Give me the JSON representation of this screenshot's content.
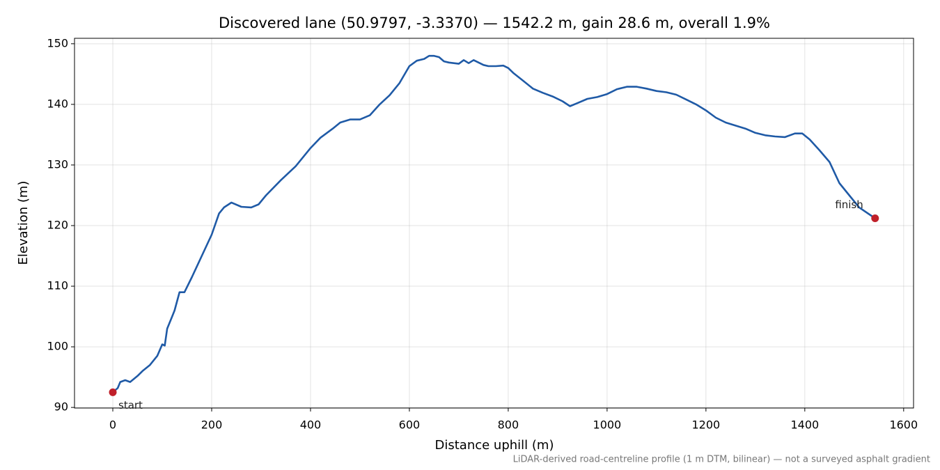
{
  "chart_data": {
    "type": "line",
    "title": "Discovered lane (50.9797, -3.3370) — 1542.2 m, gain 28.6 m, overall 1.9%",
    "x_label": "Distance uphill (m)",
    "y_label": "Elevation (m)",
    "footnote": "LiDAR-derived road-centreline profile (1 m DTM, bilinear) — not a surveyed asphalt gradient",
    "color": "#1f5aa6",
    "x": [
      0,
      10,
      15,
      25,
      35,
      50,
      60,
      75,
      90,
      100,
      105,
      110,
      120,
      125,
      135,
      145,
      160,
      180,
      200,
      215,
      225,
      240,
      260,
      280,
      295,
      310,
      340,
      370,
      400,
      420,
      445,
      460,
      480,
      500,
      520,
      540,
      560,
      580,
      600,
      615,
      630,
      640,
      650,
      660,
      670,
      680,
      700,
      710,
      720,
      730,
      740,
      750,
      760,
      775,
      790,
      800,
      810,
      830,
      850,
      870,
      890,
      910,
      925,
      940,
      960,
      980,
      1000,
      1020,
      1040,
      1060,
      1080,
      1100,
      1120,
      1140,
      1160,
      1180,
      1200,
      1220,
      1240,
      1260,
      1280,
      1300,
      1320,
      1340,
      1360,
      1380,
      1395,
      1410,
      1430,
      1450,
      1470,
      1490,
      1510,
      1542.2
    ],
    "values": [
      92.5,
      93.2,
      94.2,
      94.5,
      94.2,
      95.2,
      96,
      97,
      98.5,
      100.4,
      100.2,
      103,
      105,
      106,
      109,
      109,
      111.5,
      115,
      118.5,
      122,
      123,
      123.8,
      123.1,
      123.0,
      123.5,
      125,
      127.5,
      129.8,
      132.8,
      134.5,
      136.0,
      137.0,
      137.5,
      137.5,
      138.2,
      140,
      141.5,
      143.5,
      146.3,
      147.2,
      147.5,
      148,
      148,
      147.8,
      147.1,
      146.9,
      146.7,
      147.3,
      146.8,
      147.3,
      146.9,
      146.5,
      146.3,
      146.3,
      146.4,
      146.0,
      145.2,
      143.9,
      142.6,
      141.9,
      141.3,
      140.5,
      139.7,
      140.2,
      140.9,
      141.2,
      141.7,
      142.5,
      142.9,
      142.9,
      142.6,
      142.2,
      142.0,
      141.6,
      140.8,
      140.0,
      139.0,
      137.8,
      137.0,
      136.5,
      136.0,
      135.3,
      134.9,
      134.7,
      134.6,
      135.2,
      135.2,
      134.2,
      132.4,
      130.5,
      127,
      125,
      123,
      121.2
    ],
    "points": [
      {
        "label": "start",
        "x": 0,
        "y": 92.5,
        "color": "#c0202a"
      },
      {
        "label": "finish",
        "x": 1542.2,
        "y": 121.2,
        "color": "#c0202a"
      }
    ],
    "xlim": [
      -77.5,
      1620
    ],
    "ylim": [
      89.9,
      150.9
    ],
    "xticks": [
      0,
      200,
      400,
      600,
      800,
      1000,
      1200,
      1400,
      1600
    ],
    "yticks": [
      90,
      100,
      110,
      120,
      130,
      140,
      150
    ],
    "grid": true
  }
}
